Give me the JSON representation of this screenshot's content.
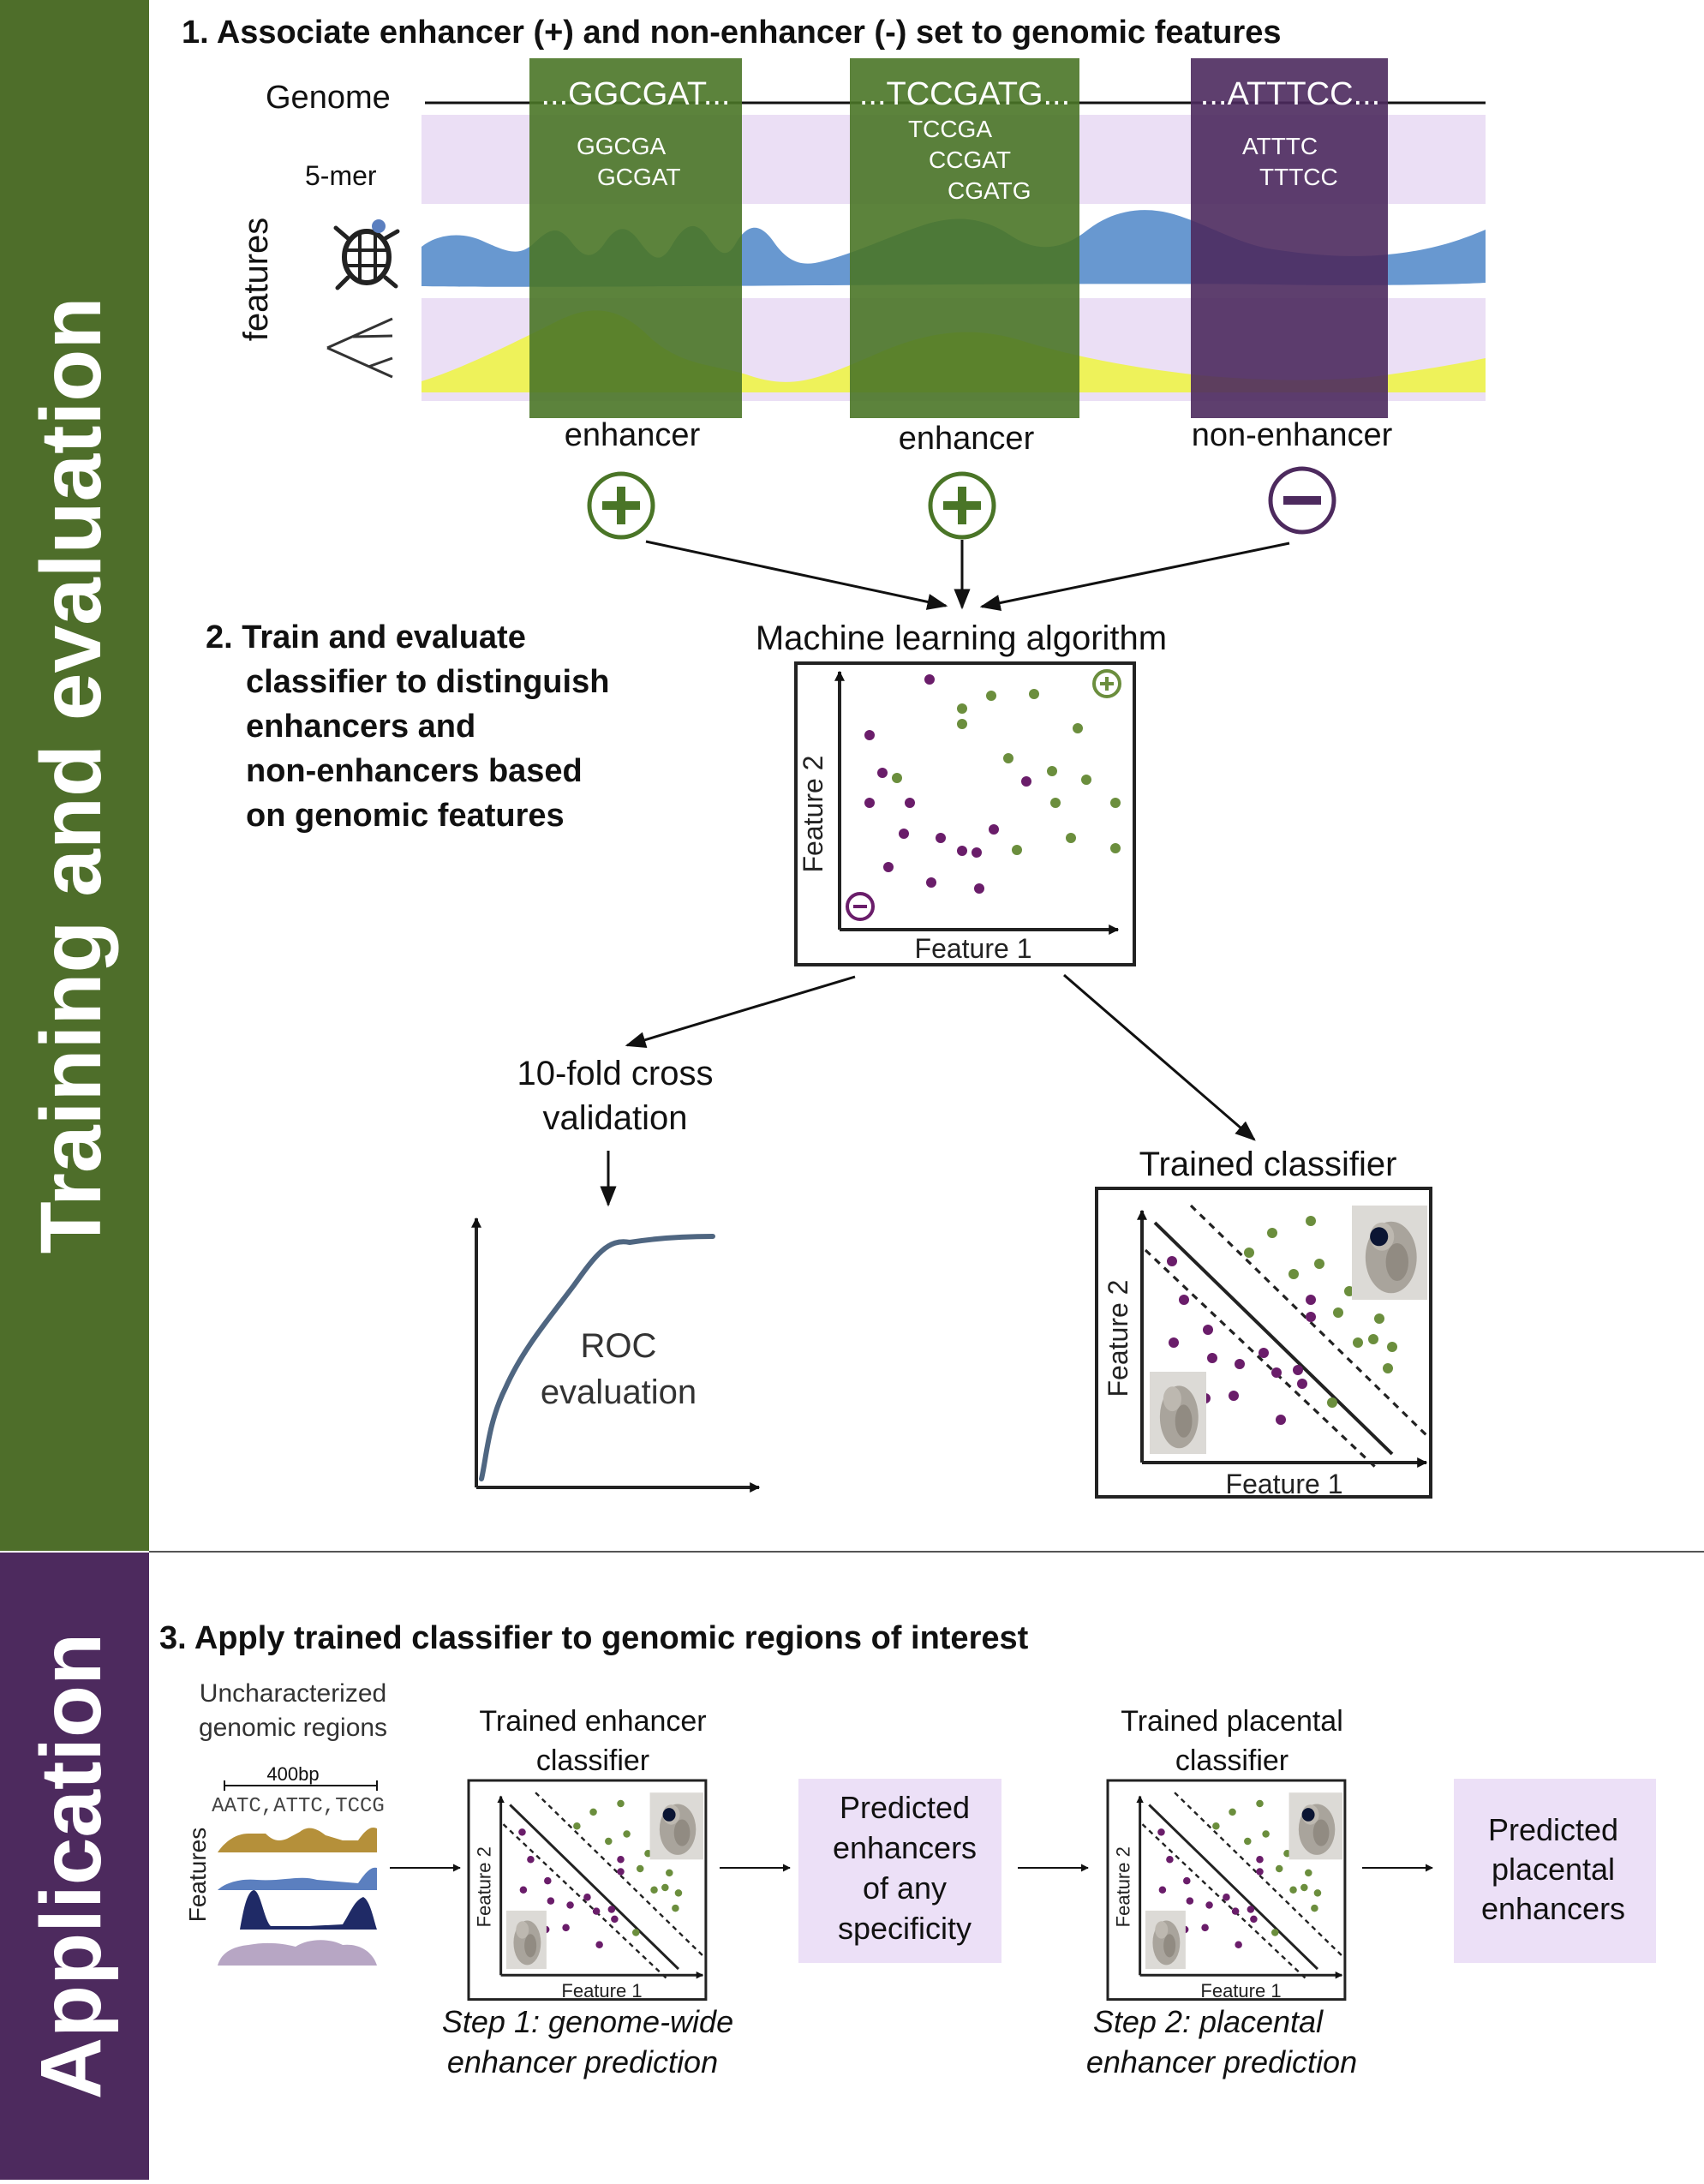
{
  "sidebars": {
    "training": {
      "label": "Training and evaluation",
      "color": "#4e6e2a"
    },
    "application": {
      "label": "Application",
      "color": "#4d2a5e"
    }
  },
  "colors": {
    "enhancer_green": "#4a7527",
    "nonenh_purple": "#4d2a5e",
    "dot_green": "#6b8e3d",
    "dot_purple": "#6a1d6a",
    "kmer_band": "#ebdff5",
    "track_blue": "#5b8fcc",
    "track_yellow": "#eef25a",
    "box_lilac": "#ece0f7"
  },
  "step1": {
    "heading": "1. Associate enhancer (+) and non-enhancer (-) set  to genomic features",
    "genome_label": "Genome",
    "kmer_label": "5-mer",
    "features_label": "features",
    "turtle_icon": "turtle-icon",
    "tree_icon": "phylogeny-tree-icon",
    "regions": [
      {
        "sequence": "...GGCGAT...",
        "kmers": [
          "GGCGA",
          "GCGAT"
        ],
        "label": "enhancer",
        "sign": "plus"
      },
      {
        "sequence": "...TCCGATG...",
        "kmers": [
          "TCCGA",
          "CCGAT",
          "CGATG"
        ],
        "label": "enhancer",
        "sign": "plus"
      },
      {
        "sequence": "...ATTTCC...",
        "kmers": [
          "ATTTC",
          "TTTCC"
        ],
        "label": "non-enhancer",
        "sign": "minus"
      }
    ]
  },
  "step2": {
    "heading_lines": [
      "2. Train and evaluate",
      "classifier to distinguish",
      "enhancers and",
      "non-enhancers based",
      "on genomic features"
    ],
    "ml_title": "Machine learning algorithm",
    "feature1": "Feature 1",
    "feature2": "Feature 2",
    "cv_lines": [
      "10-fold cross",
      "validation"
    ],
    "roc_lines": [
      "ROC",
      "evaluation"
    ],
    "trained_title": "Trained classifier"
  },
  "step3": {
    "heading": "3. Apply trained classifier to genomic regions of interest",
    "uncharacterized_lines": [
      "Uncharacterized",
      "genomic regions"
    ],
    "scale_label": "400bp",
    "kmer_text": "AATC,ATTC,TCCG",
    "features_label": "Features",
    "classifier1_lines": [
      "Trained enhancer",
      "classifier"
    ],
    "classifier2_lines": [
      "Trained placental",
      "classifier"
    ],
    "predicted1_lines": [
      "Predicted",
      "enhancers",
      "of any",
      "specificity"
    ],
    "predicted2_lines": [
      "Predicted",
      "placental",
      "enhancers"
    ],
    "step1_caption_lines": [
      "Step 1: genome-wide",
      "enhancer prediction"
    ],
    "step2_caption_lines": [
      "Step 2: placental",
      "enhancer prediction"
    ],
    "feature1": "Feature 1",
    "feature2": "Feature 2"
  }
}
